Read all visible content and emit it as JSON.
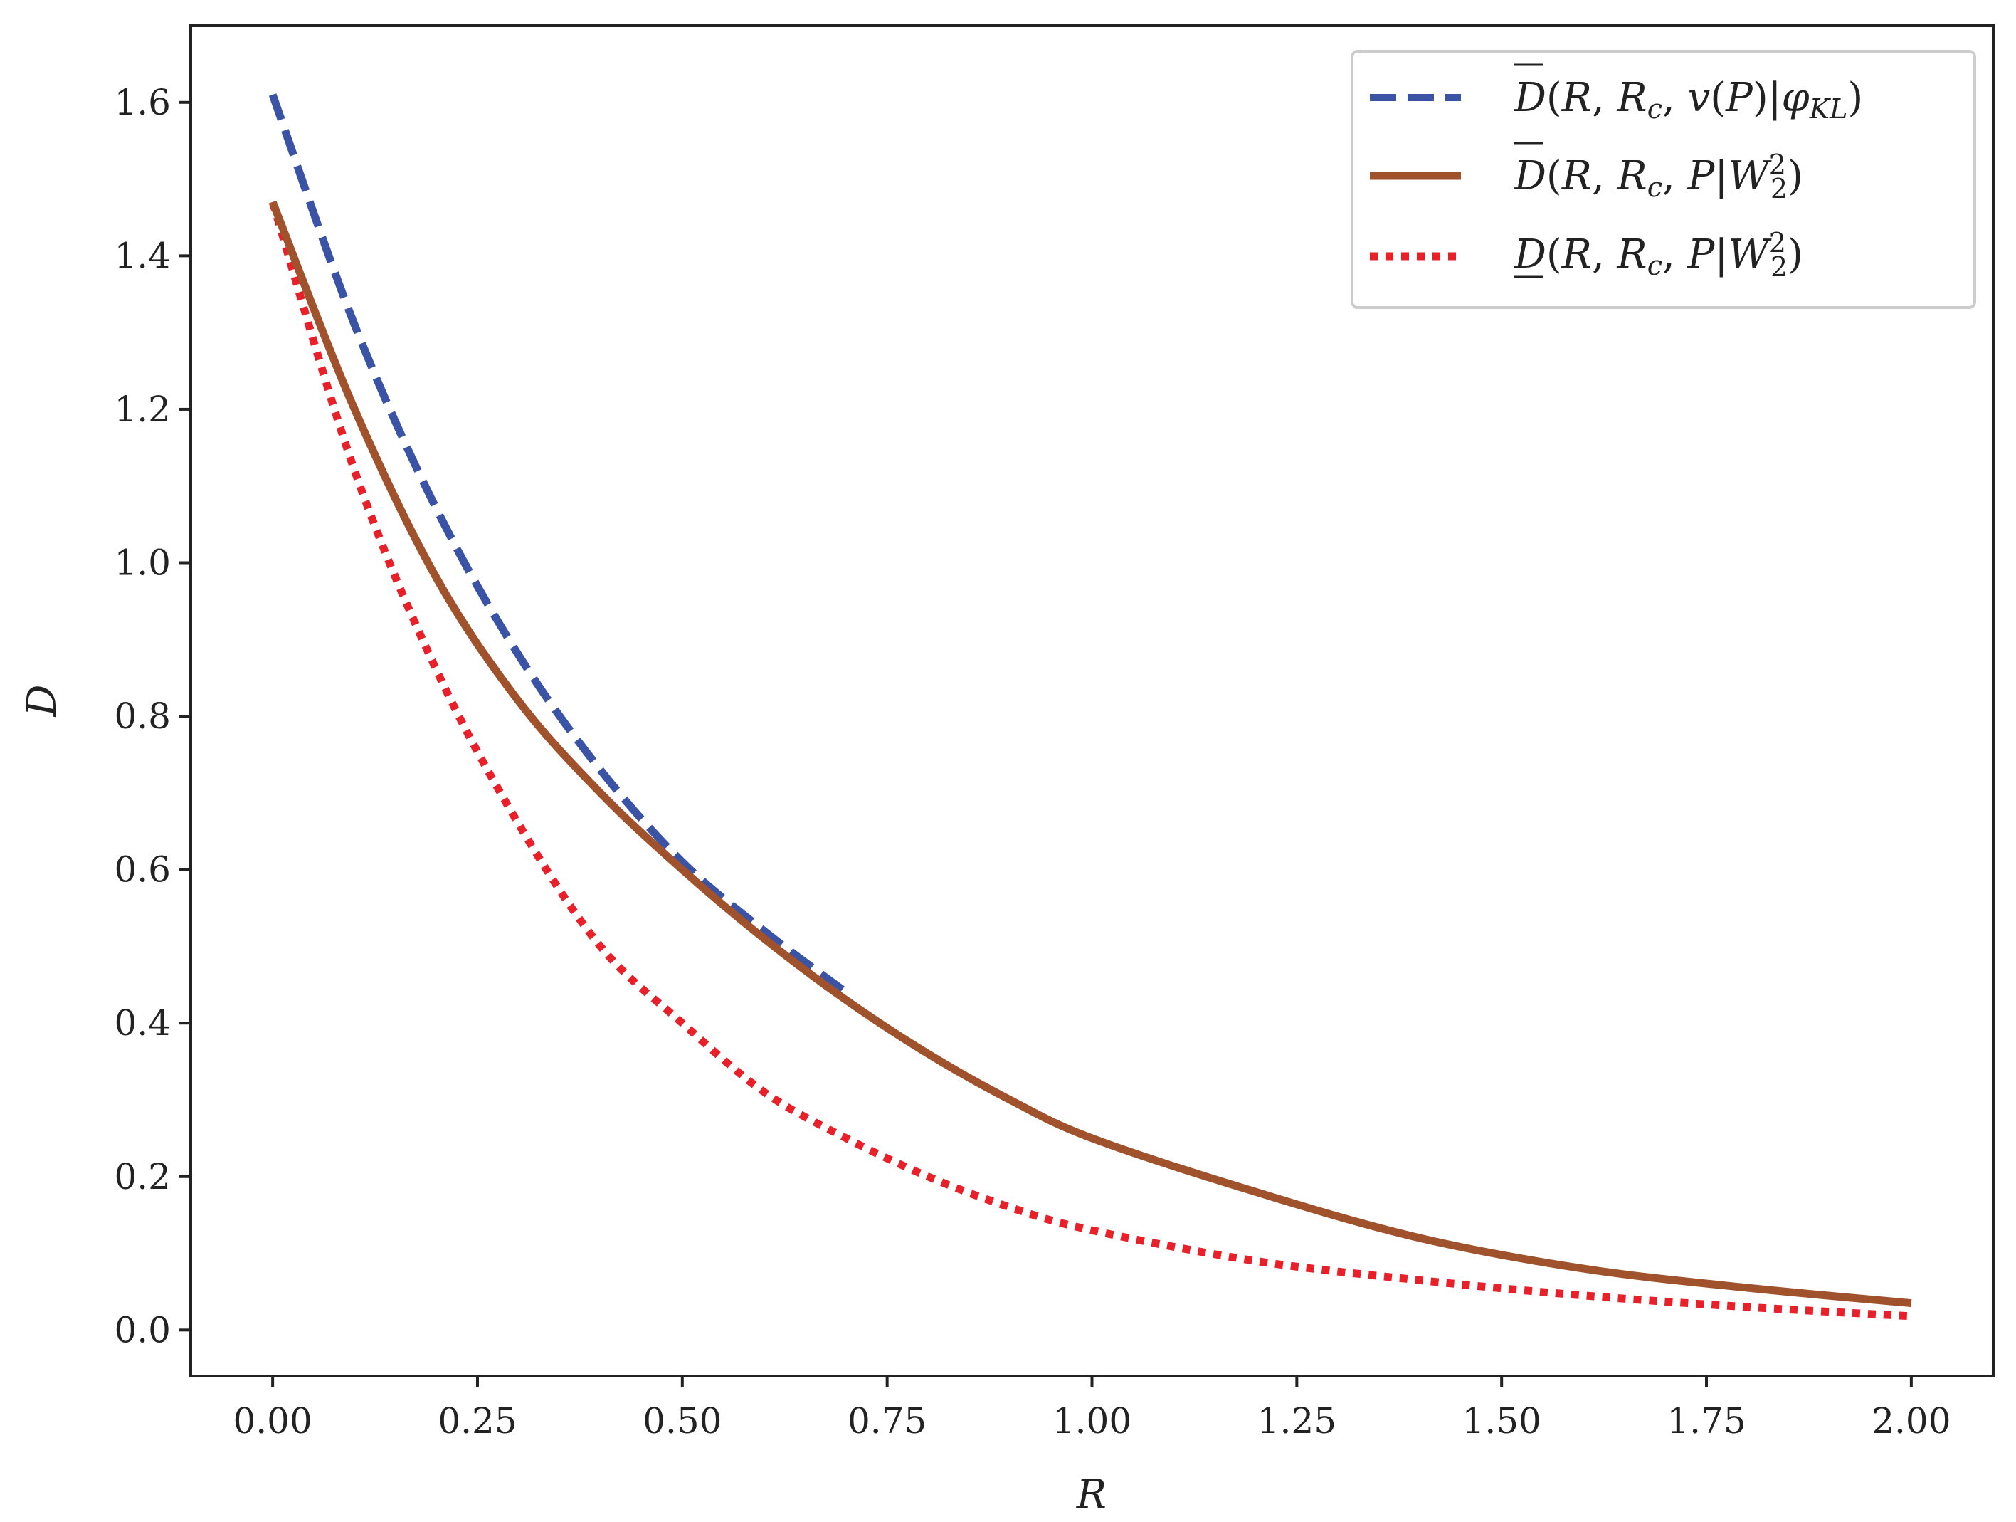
{
  "chart_data": {
    "type": "line",
    "xlabel": "R",
    "ylabel": "D",
    "xlim": [
      -0.1,
      2.1
    ],
    "ylim": [
      -0.06,
      1.7
    ],
    "xticks": [
      "0.00",
      "0.25",
      "0.50",
      "0.75",
      "1.00",
      "1.25",
      "1.50",
      "1.75",
      "2.00"
    ],
    "yticks": [
      "0.0",
      "0.2",
      "0.4",
      "0.6",
      "0.8",
      "1.0",
      "1.2",
      "1.4",
      "1.6"
    ],
    "grid": false,
    "legend_position": "top-right",
    "series": [
      {
        "name": "D̄(R, R_c, v(P)|φ_KL)",
        "color": "#3a53a4",
        "style": "dashed",
        "x": [
          0.0,
          0.1,
          0.2,
          0.3,
          0.4,
          0.5,
          0.6,
          0.7
        ],
        "y": [
          1.61,
          1.31,
          1.07,
          0.88,
          0.73,
          0.61,
          0.52,
          0.44
        ]
      },
      {
        "name": "D̄(R, R_c, P|W_2^2)",
        "color": "#a0522d",
        "style": "solid",
        "x": [
          0.0,
          0.1,
          0.2,
          0.3,
          0.4,
          0.5,
          0.6,
          0.7,
          0.8,
          0.9,
          1.0,
          1.2,
          1.4,
          1.6,
          1.8,
          2.0
        ],
        "y": [
          1.47,
          1.2,
          0.98,
          0.82,
          0.7,
          0.6,
          0.51,
          0.43,
          0.36,
          0.3,
          0.25,
          0.18,
          0.12,
          0.08,
          0.055,
          0.035
        ]
      },
      {
        "name": "D(R, R_c, P|W_2^2)",
        "color": "#e8202a",
        "style": "dotted",
        "x": [
          0.0,
          0.1,
          0.2,
          0.3,
          0.4,
          0.5,
          0.6,
          0.7,
          0.8,
          0.9,
          1.0,
          1.2,
          1.4,
          1.6,
          1.8,
          2.0
        ],
        "y": [
          1.47,
          1.12,
          0.86,
          0.66,
          0.5,
          0.4,
          0.31,
          0.25,
          0.2,
          0.16,
          0.13,
          0.09,
          0.065,
          0.045,
          0.03,
          0.018
        ]
      }
    ]
  }
}
